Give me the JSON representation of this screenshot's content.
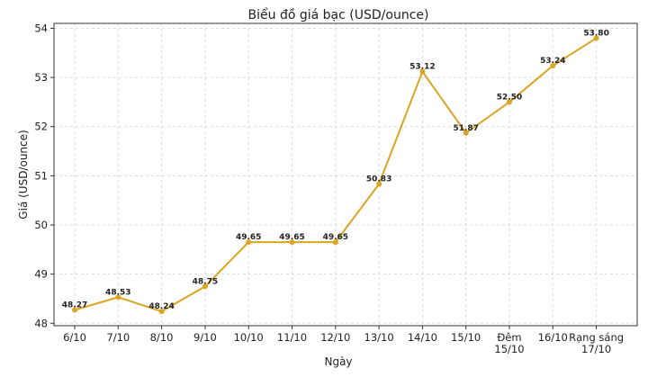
{
  "chart_data": {
    "type": "line",
    "title": "Biểu đồ giá bạc (USD/ounce)",
    "xlabel": "Ngày",
    "ylabel": "Giá (USD/ounce)",
    "categories": [
      "6/10",
      "7/10",
      "8/10",
      "9/10",
      "10/10",
      "11/10",
      "12/10",
      "13/10",
      "14/10",
      "15/10",
      "Đêm\n15/10",
      "16/10",
      "Rạng sáng\n17/10"
    ],
    "series": [
      {
        "values": [
          48.27,
          48.53,
          48.24,
          48.75,
          49.65,
          49.65,
          49.65,
          50.83,
          53.12,
          51.87,
          52.5,
          53.24,
          53.8
        ],
        "data_labels": [
          "48.27",
          "48.53",
          "48.24",
          "48.75",
          "49.65",
          "49.65",
          "49.65",
          "50.83",
          "53.12",
          "51.87",
          "52.50",
          "53.24",
          "53.80"
        ]
      }
    ],
    "ylim": [
      47.95,
      54.1
    ],
    "yticks": [
      48,
      49,
      50,
      51,
      52,
      53,
      54
    ],
    "grid": true,
    "line_color": "#DAA520"
  }
}
